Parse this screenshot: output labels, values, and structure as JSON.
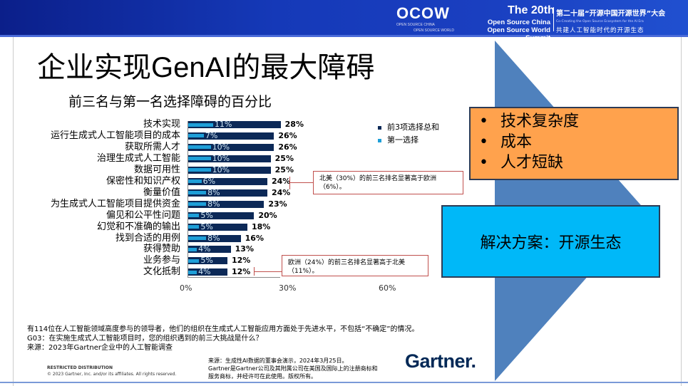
{
  "banner": {
    "logo": "OCOW",
    "logo_sub1": "OPEN SOURCE CHINA",
    "logo_sub2": "OPEN SOURCE WORLD",
    "edition": "The 20th",
    "event_en1": "Open Source China",
    "event_en2": "Open Source World Summit",
    "event_cn": "第二十届“开源中国开源世界”大会",
    "tagline_en": "Co-Creating the Open Source Ecosystem for the AI Era",
    "tagline_cn": "共建人工智能时代的开源生态"
  },
  "slide": {
    "title": "企业实现GenAI的最大障碍",
    "orange_items": [
      "技术复杂度",
      "成本",
      "人才短缺"
    ],
    "solution": "解决方案：开源生态"
  },
  "chart_data": {
    "type": "bar",
    "orientation": "horizontal",
    "title": "前三名与第一名选择障碍的百分比",
    "categories": [
      "技术实现",
      "运行生成式人工智能项目的成本",
      "获取所需人才",
      "治理生成式人工智能",
      "数据可用性",
      "保密性和知识产权",
      "衡量价值",
      "为生成式人工智能项目提供资金",
      "偏见和公平性问题",
      "幻觉和不准确的输出",
      "找到合适的用例",
      "获得赞助",
      "业务参与",
      "文化抵制"
    ],
    "series": [
      {
        "name": "前3项选择总和",
        "color": "#0c2957",
        "values": [
          28,
          26,
          26,
          25,
          25,
          24,
          24,
          23,
          20,
          18,
          16,
          13,
          12,
          12
        ]
      },
      {
        "name": "第一选择",
        "color": "#1e9fd8",
        "values": [
          11,
          7,
          10,
          10,
          10,
          6,
          8,
          8,
          5,
          5,
          8,
          4,
          5,
          4
        ]
      }
    ],
    "xlim": [
      0,
      60
    ],
    "xticks": [
      "0%",
      "30%",
      "60%"
    ],
    "legend": "top-right",
    "annotations": [
      {
        "category": "保密性和知识产权",
        "text": "北美（30%）的前三名排名显著高于欧洲（6%）。"
      },
      {
        "category": "文化抵制",
        "text": "欧洲（24%）的前三名排名显著高于北美（11%）。"
      }
    ]
  },
  "notes": {
    "line1": "有114位在人工智能领域高度参与的领导者，他们的组织在生成式人工智能应用方面处于先进水平，不包括“不确定”的情况。",
    "line2": "G03：在实施生成式人工智能项目时，您的组织遇到的前三大挑战是什么？",
    "line3": "来源：2023年Gartner企业中的人工智能调查"
  },
  "footer": {
    "restricted": "RESTRICTED DISTRIBUTION",
    "copyright": "© 2023 Gartner, Inc. and/or its affiliates. All rights reserved.",
    "source1": "来源：生成性AI数据的董事会演示，2024年3月25日。",
    "source2": "Gartner是Gartner公司及其附属公司在美国及国际上的注册商标和",
    "source3": "服务商标，并经许可在此使用。版权所有。",
    "brand": "Gartner."
  }
}
